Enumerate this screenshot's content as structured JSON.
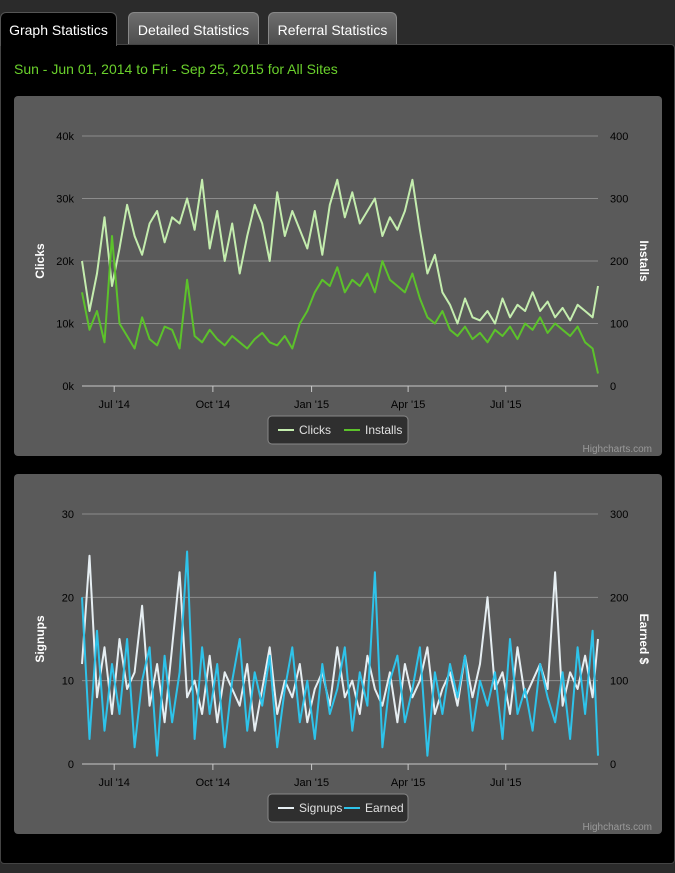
{
  "tabs": [
    {
      "label": "Graph Statistics",
      "active": true
    },
    {
      "label": "Detailed Statistics",
      "active": false
    },
    {
      "label": "Referral Statistics",
      "active": false
    }
  ],
  "date_range": "Sun - Jun 01, 2014 to Fri - Sep 25, 2015 for All Sites",
  "credits": "Highcharts.com",
  "colors": {
    "clicks": "#c4edae",
    "installs": "#5cc22b",
    "signups": "#e6eef2",
    "earned": "#2ec3ea"
  },
  "chart_data": [
    {
      "type": "line",
      "ylabel": "Clicks",
      "y2label": "Installs",
      "ylim": [
        0,
        40000
      ],
      "y2lim": [
        0,
        400
      ],
      "yticks": [
        "0k",
        "10k",
        "20k",
        "30k",
        "40k"
      ],
      "y2ticks": [
        "0",
        "100",
        "200",
        "300",
        "400"
      ],
      "xrange": [
        "2014-06-01",
        "2015-09-25"
      ],
      "xticks": [
        {
          "date": "2014-07-01",
          "label": "Jul '14"
        },
        {
          "date": "2014-10-01",
          "label": "Oct '14"
        },
        {
          "date": "2015-01-01",
          "label": "Jan '15"
        },
        {
          "date": "2015-04-01",
          "label": "Apr '15"
        },
        {
          "date": "2015-07-01",
          "label": "Jul '15"
        }
      ],
      "legend": "bottom-center",
      "series": [
        {
          "name": "Clicks",
          "axis": "left",
          "color": "#c4edae",
          "x": [
            "2014-06-01",
            "2014-06-08",
            "2014-06-15",
            "2014-06-22",
            "2014-06-29",
            "2014-07-06",
            "2014-07-13",
            "2014-07-20",
            "2014-07-27",
            "2014-08-03",
            "2014-08-10",
            "2014-08-17",
            "2014-08-24",
            "2014-08-31",
            "2014-09-07",
            "2014-09-14",
            "2014-09-21",
            "2014-09-28",
            "2014-10-05",
            "2014-10-12",
            "2014-10-19",
            "2014-10-26",
            "2014-11-02",
            "2014-11-09",
            "2014-11-16",
            "2014-11-23",
            "2014-11-30",
            "2014-12-07",
            "2014-12-14",
            "2014-12-21",
            "2014-12-28",
            "2015-01-04",
            "2015-01-11",
            "2015-01-18",
            "2015-01-25",
            "2015-02-01",
            "2015-02-08",
            "2015-02-15",
            "2015-02-22",
            "2015-03-01",
            "2015-03-08",
            "2015-03-15",
            "2015-03-22",
            "2015-03-29",
            "2015-04-05",
            "2015-04-12",
            "2015-04-19",
            "2015-04-26",
            "2015-05-03",
            "2015-05-10",
            "2015-05-17",
            "2015-05-24",
            "2015-05-31",
            "2015-06-07",
            "2015-06-14",
            "2015-06-21",
            "2015-06-28",
            "2015-07-05",
            "2015-07-12",
            "2015-07-19",
            "2015-07-26",
            "2015-08-02",
            "2015-08-09",
            "2015-08-16",
            "2015-08-23",
            "2015-08-30",
            "2015-09-06",
            "2015-09-13",
            "2015-09-20",
            "2015-09-25"
          ],
          "values": [
            20000,
            12000,
            18000,
            27000,
            16000,
            22000,
            29000,
            24000,
            21000,
            26000,
            28000,
            23000,
            27000,
            26000,
            30000,
            25000,
            33000,
            22000,
            28000,
            20000,
            26000,
            18000,
            24000,
            29000,
            26000,
            20000,
            31000,
            24000,
            28000,
            25000,
            22000,
            28000,
            21000,
            29000,
            33000,
            27000,
            31000,
            26000,
            28000,
            30000,
            24000,
            27000,
            25000,
            28000,
            33000,
            25000,
            18000,
            21000,
            15000,
            13000,
            10000,
            14000,
            11000,
            10500,
            12000,
            10000,
            14000,
            11000,
            13000,
            12000,
            15000,
            12000,
            13500,
            11000,
            12500,
            10500,
            13000,
            12000,
            11000,
            16000
          ]
        },
        {
          "name": "Installs",
          "axis": "right",
          "color": "#5cc22b",
          "x": [
            "2014-06-01",
            "2014-06-08",
            "2014-06-15",
            "2014-06-22",
            "2014-06-29",
            "2014-07-06",
            "2014-07-13",
            "2014-07-20",
            "2014-07-27",
            "2014-08-03",
            "2014-08-10",
            "2014-08-17",
            "2014-08-24",
            "2014-08-31",
            "2014-09-07",
            "2014-09-14",
            "2014-09-21",
            "2014-09-28",
            "2014-10-05",
            "2014-10-12",
            "2014-10-19",
            "2014-10-26",
            "2014-11-02",
            "2014-11-09",
            "2014-11-16",
            "2014-11-23",
            "2014-11-30",
            "2014-12-07",
            "2014-12-14",
            "2014-12-21",
            "2014-12-28",
            "2015-01-04",
            "2015-01-11",
            "2015-01-18",
            "2015-01-25",
            "2015-02-01",
            "2015-02-08",
            "2015-02-15",
            "2015-02-22",
            "2015-03-01",
            "2015-03-08",
            "2015-03-15",
            "2015-03-22",
            "2015-03-29",
            "2015-04-05",
            "2015-04-12",
            "2015-04-19",
            "2015-04-26",
            "2015-05-03",
            "2015-05-10",
            "2015-05-17",
            "2015-05-24",
            "2015-05-31",
            "2015-06-07",
            "2015-06-14",
            "2015-06-21",
            "2015-06-28",
            "2015-07-05",
            "2015-07-12",
            "2015-07-19",
            "2015-07-26",
            "2015-08-02",
            "2015-08-09",
            "2015-08-16",
            "2015-08-23",
            "2015-08-30",
            "2015-09-06",
            "2015-09-13",
            "2015-09-20",
            "2015-09-25"
          ],
          "values": [
            150,
            90,
            120,
            70,
            240,
            100,
            80,
            60,
            110,
            75,
            65,
            95,
            90,
            60,
            170,
            80,
            70,
            90,
            75,
            65,
            80,
            70,
            60,
            75,
            85,
            70,
            65,
            80,
            60,
            100,
            120,
            150,
            170,
            160,
            190,
            150,
            170,
            160,
            180,
            150,
            200,
            170,
            160,
            150,
            180,
            140,
            110,
            100,
            120,
            90,
            80,
            95,
            75,
            85,
            70,
            90,
            80,
            95,
            75,
            100,
            90,
            110,
            85,
            100,
            90,
            80,
            95,
            70,
            60,
            20
          ]
        }
      ]
    },
    {
      "type": "line",
      "ylabel": "Signups",
      "y2label": "Earned $",
      "ylim": [
        0,
        30
      ],
      "y2lim": [
        0,
        300
      ],
      "yticks": [
        "0",
        "10",
        "20",
        "30"
      ],
      "y2ticks": [
        "0",
        "100",
        "200",
        "300"
      ],
      "xrange": [
        "2014-06-01",
        "2015-09-25"
      ],
      "xticks": [
        {
          "date": "2014-07-01",
          "label": "Jul '14"
        },
        {
          "date": "2014-10-01",
          "label": "Oct '14"
        },
        {
          "date": "2015-01-01",
          "label": "Jan '15"
        },
        {
          "date": "2015-04-01",
          "label": "Apr '15"
        },
        {
          "date": "2015-07-01",
          "label": "Jul '15"
        }
      ],
      "legend": "bottom-center",
      "series": [
        {
          "name": "Signups",
          "axis": "left",
          "color": "#e6eef2",
          "x": [
            "2014-06-01",
            "2014-06-08",
            "2014-06-15",
            "2014-06-22",
            "2014-06-29",
            "2014-07-06",
            "2014-07-13",
            "2014-07-20",
            "2014-07-27",
            "2014-08-03",
            "2014-08-10",
            "2014-08-17",
            "2014-08-24",
            "2014-08-31",
            "2014-09-07",
            "2014-09-14",
            "2014-09-21",
            "2014-09-28",
            "2014-10-05",
            "2014-10-12",
            "2014-10-19",
            "2014-10-26",
            "2014-11-02",
            "2014-11-09",
            "2014-11-16",
            "2014-11-23",
            "2014-11-30",
            "2014-12-07",
            "2014-12-14",
            "2014-12-21",
            "2014-12-28",
            "2015-01-04",
            "2015-01-11",
            "2015-01-18",
            "2015-01-25",
            "2015-02-01",
            "2015-02-08",
            "2015-02-15",
            "2015-02-22",
            "2015-03-01",
            "2015-03-08",
            "2015-03-15",
            "2015-03-22",
            "2015-03-29",
            "2015-04-05",
            "2015-04-12",
            "2015-04-19",
            "2015-04-26",
            "2015-05-03",
            "2015-05-10",
            "2015-05-17",
            "2015-05-24",
            "2015-05-31",
            "2015-06-07",
            "2015-06-14",
            "2015-06-21",
            "2015-06-28",
            "2015-07-05",
            "2015-07-12",
            "2015-07-19",
            "2015-07-26",
            "2015-08-02",
            "2015-08-09",
            "2015-08-16",
            "2015-08-23",
            "2015-08-30",
            "2015-09-06",
            "2015-09-13",
            "2015-09-20",
            "2015-09-25"
          ],
          "values": [
            12,
            25,
            8,
            14,
            6,
            15,
            9,
            11,
            19,
            7,
            12,
            5,
            14,
            23,
            8,
            10,
            6,
            13,
            5,
            11,
            9,
            7,
            12,
            4,
            9,
            14,
            6,
            10,
            8,
            12,
            5,
            9,
            11,
            7,
            14,
            8,
            10,
            6,
            13,
            9,
            7,
            11,
            5,
            12,
            8,
            10,
            14,
            6,
            9,
            11,
            7,
            13,
            8,
            12,
            20,
            9,
            11,
            6,
            14,
            8,
            10,
            12,
            9,
            23,
            7,
            11,
            9,
            13,
            8,
            15
          ]
        },
        {
          "name": "Earned",
          "axis": "right",
          "color": "#2ec3ea",
          "x": [
            "2014-06-01",
            "2014-06-08",
            "2014-06-15",
            "2014-06-22",
            "2014-06-29",
            "2014-07-06",
            "2014-07-13",
            "2014-07-20",
            "2014-07-27",
            "2014-08-03",
            "2014-08-10",
            "2014-08-17",
            "2014-08-24",
            "2014-08-31",
            "2014-09-07",
            "2014-09-14",
            "2014-09-21",
            "2014-09-28",
            "2014-10-05",
            "2014-10-12",
            "2014-10-19",
            "2014-10-26",
            "2014-11-02",
            "2014-11-09",
            "2014-11-16",
            "2014-11-23",
            "2014-11-30",
            "2014-12-07",
            "2014-12-14",
            "2014-12-21",
            "2014-12-28",
            "2015-01-04",
            "2015-01-11",
            "2015-01-18",
            "2015-01-25",
            "2015-02-01",
            "2015-02-08",
            "2015-02-15",
            "2015-02-22",
            "2015-03-01",
            "2015-03-08",
            "2015-03-15",
            "2015-03-22",
            "2015-03-29",
            "2015-04-05",
            "2015-04-12",
            "2015-04-19",
            "2015-04-26",
            "2015-05-03",
            "2015-05-10",
            "2015-05-17",
            "2015-05-24",
            "2015-05-31",
            "2015-06-07",
            "2015-06-14",
            "2015-06-21",
            "2015-06-28",
            "2015-07-05",
            "2015-07-12",
            "2015-07-19",
            "2015-07-26",
            "2015-08-02",
            "2015-08-09",
            "2015-08-16",
            "2015-08-23",
            "2015-08-30",
            "2015-09-06",
            "2015-09-13",
            "2015-09-20",
            "2015-09-25"
          ],
          "values": [
            200,
            30,
            160,
            40,
            120,
            60,
            150,
            20,
            100,
            140,
            10,
            130,
            50,
            110,
            255,
            30,
            140,
            60,
            120,
            20,
            100,
            150,
            40,
            110,
            70,
            130,
            20,
            90,
            140,
            50,
            100,
            30,
            120,
            60,
            90,
            140,
            40,
            110,
            70,
            230,
            20,
            100,
            130,
            50,
            90,
            140,
            10,
            110,
            60,
            120,
            80,
            130,
            40,
            100,
            70,
            110,
            30,
            150,
            60,
            90,
            40,
            120,
            80,
            50,
            110,
            30,
            140,
            60,
            160,
            10
          ]
        }
      ]
    }
  ]
}
